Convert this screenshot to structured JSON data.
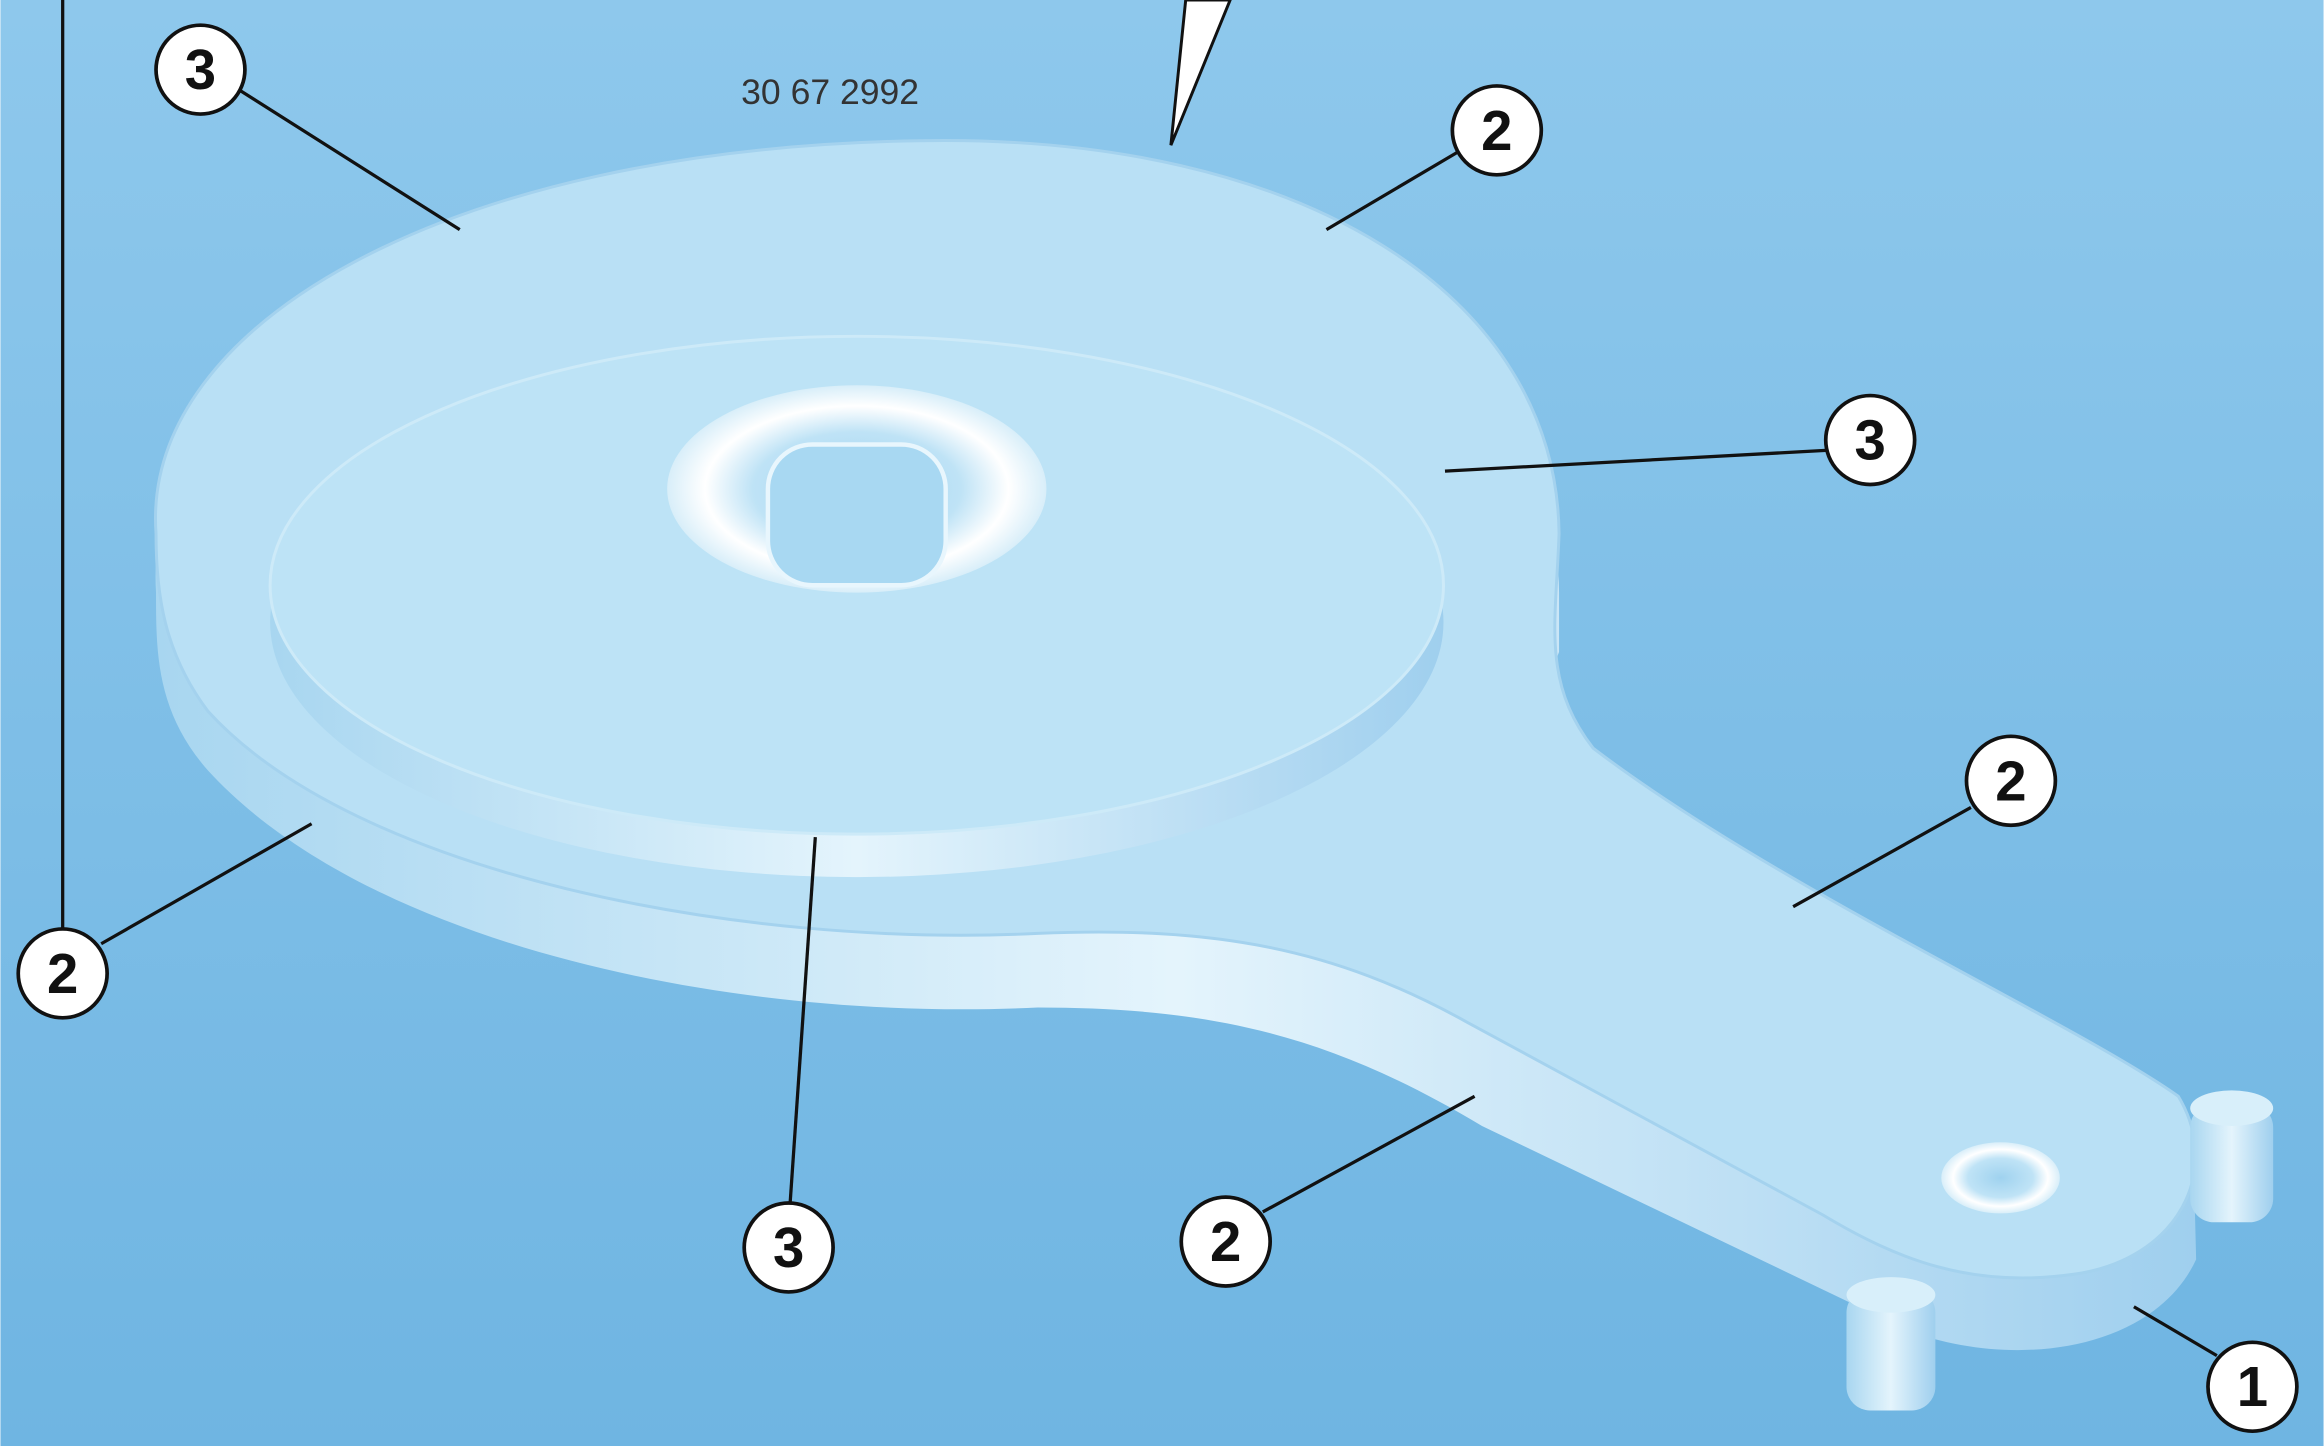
{
  "part_number": "30 67 2992",
  "callouts": [
    "3",
    "2",
    "3",
    "2",
    "2",
    "3",
    "2",
    "1"
  ]
}
